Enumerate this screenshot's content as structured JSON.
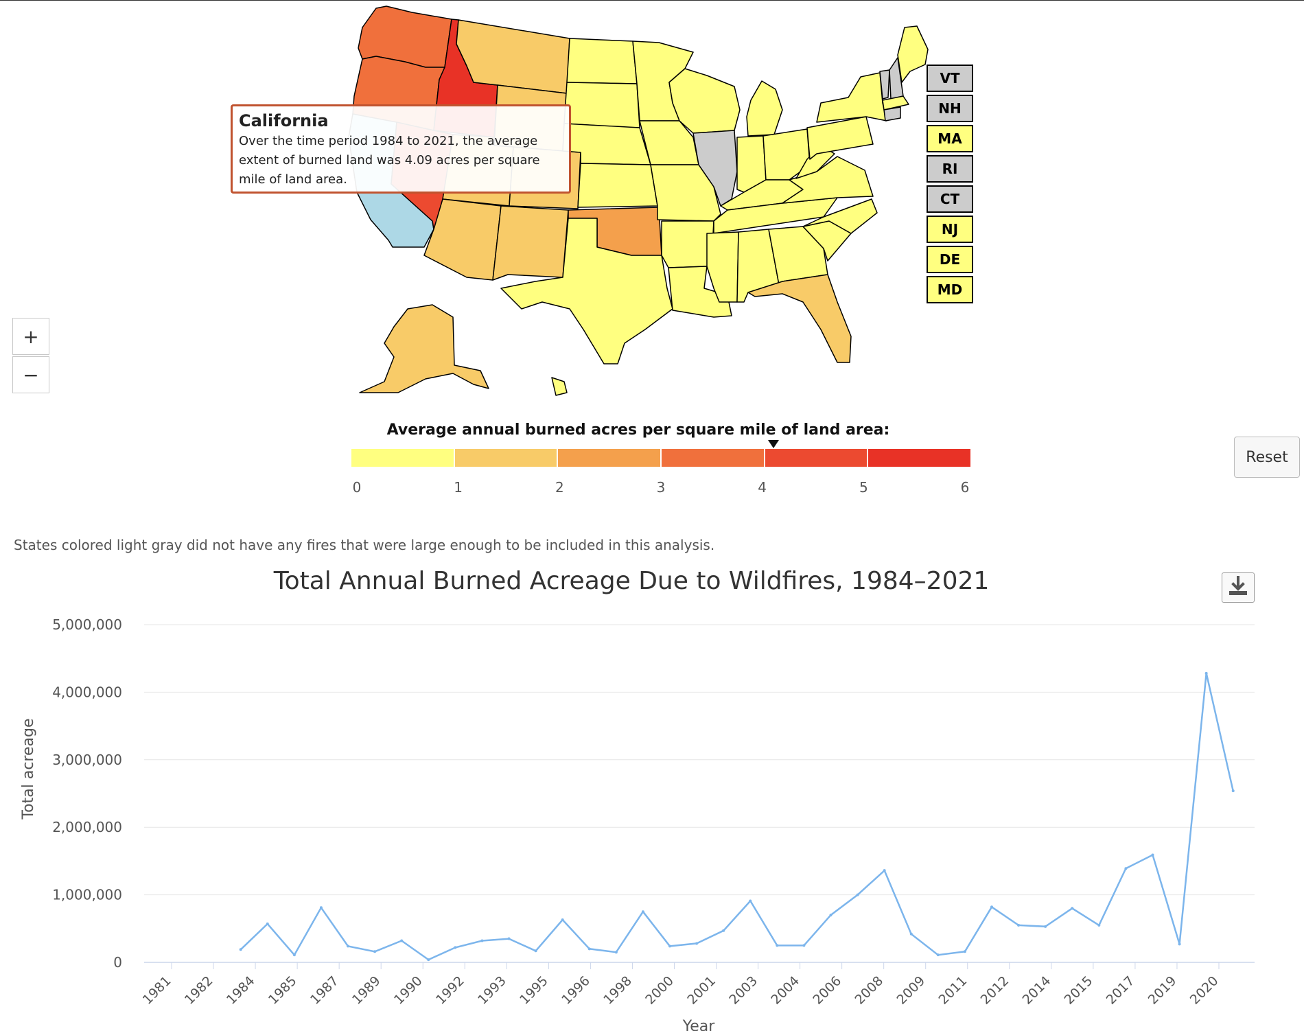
{
  "map": {
    "zoom_in_label": "+",
    "zoom_out_label": "−",
    "small_states": [
      {
        "label": "VT",
        "color": "#cccccc"
      },
      {
        "label": "NH",
        "color": "#cccccc"
      },
      {
        "label": "MA",
        "color": "#ffff80"
      },
      {
        "label": "RI",
        "color": "#cccccc"
      },
      {
        "label": "CT",
        "color": "#cccccc"
      },
      {
        "label": "NJ",
        "color": "#ffff80"
      },
      {
        "label": "DE",
        "color": "#ffff80"
      },
      {
        "label": "MD",
        "color": "#ffff80"
      }
    ],
    "tooltip": {
      "title": "California",
      "text": "Over the time period 1984 to 2021, the average extent of burned land was 4.09 acres per square mile of land area."
    },
    "selected_state_color": "#add8e6",
    "no_data_color": "#cccccc"
  },
  "legend": {
    "title": "Average annual burned acres per square mile of land area:",
    "ticks": [
      "0",
      "1",
      "2",
      "3",
      "4",
      "5",
      "6"
    ],
    "colors": [
      "#ffff80",
      "#f8cb68",
      "#f4a04c",
      "#f0703c",
      "#ec4a30",
      "#e83226"
    ],
    "marker_value": 4.09
  },
  "reset_label": "Reset",
  "note": "States colored light gray did not have any fires that were large enough to be included in this analysis.",
  "chart_title": "Total Annual Burned Acreage Due to Wildfires, 1984–2021",
  "export_icon": "download-icon",
  "chart_data": {
    "type": "line",
    "title": "Total Annual Burned Acreage Due to Wildfires, 1984–2021",
    "xlabel": "Year",
    "ylabel": "Total acreage",
    "ylim": [
      0,
      5000000
    ],
    "yticks": [
      "0",
      "1,000,000",
      "2,000,000",
      "3,000,000",
      "4,000,000",
      "5,000,000"
    ],
    "xtick_labels": [
      "1981",
      "1982",
      "1984",
      "1985",
      "1987",
      "1989",
      "1990",
      "1992",
      "1993",
      "1995",
      "1996",
      "1998",
      "2000",
      "2001",
      "2003",
      "2004",
      "2006",
      "2008",
      "2009",
      "2011",
      "2012",
      "2014",
      "2015",
      "2017",
      "2019",
      "2020"
    ],
    "xlim": [
      1980.4,
      2021.8
    ],
    "line_color": "#7cb5ec",
    "grid": true,
    "series": [
      {
        "x": [
          1984,
          1985,
          1986,
          1987,
          1988,
          1989,
          1990,
          1991,
          1992,
          1993,
          1994,
          1995,
          1996,
          1997,
          1998,
          1999,
          2000,
          2001,
          2002,
          2003,
          2004,
          2005,
          2006,
          2007,
          2008,
          2009,
          2010,
          2011,
          2012,
          2013,
          2014,
          2015,
          2016,
          2017,
          2018,
          2019,
          2020,
          2021
        ],
        "y": [
          190000,
          570000,
          110000,
          810000,
          240000,
          160000,
          320000,
          40000,
          220000,
          320000,
          350000,
          170000,
          630000,
          200000,
          150000,
          750000,
          240000,
          280000,
          470000,
          910000,
          250000,
          250000,
          700000,
          1000000,
          1360000,
          420000,
          110000,
          160000,
          820000,
          550000,
          530000,
          800000,
          550000,
          1390000,
          1590000,
          270000,
          4280000,
          2540000
        ]
      }
    ]
  }
}
